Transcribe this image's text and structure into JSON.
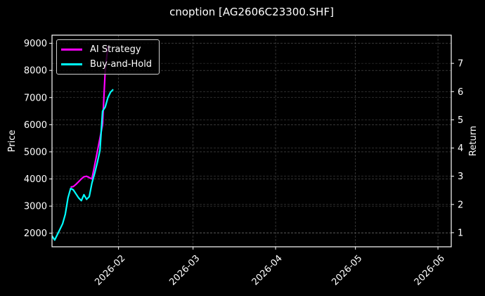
{
  "chart_data": {
    "type": "line",
    "title": "cnoption [AG2606C23300.SHF]",
    "xlabel": "",
    "ylabel": "Price",
    "ylabel_right": "Return",
    "x_ticks": [
      "2026-02",
      "2026-03",
      "2026-04",
      "2026-05",
      "2026-06"
    ],
    "y_ticks": [
      2000,
      3000,
      4000,
      5000,
      6000,
      7000,
      8000,
      9000
    ],
    "y_right_ticks": [
      1,
      2,
      3,
      4,
      5,
      6,
      7
    ],
    "ylim": [
      1500,
      9300
    ],
    "ylim_right": [
      0.5,
      8.0
    ],
    "xlim": [
      "2026-01-07",
      "2026-06-06"
    ],
    "grid": true,
    "legend_position": "upper left",
    "series": [
      {
        "name": "AI Strategy",
        "color": "#ff00ff",
        "axis": "price",
        "x": [
          "2026-01-14",
          "2026-01-15",
          "2026-01-16",
          "2026-01-17",
          "2026-01-18",
          "2026-01-19",
          "2026-01-20",
          "2026-01-21",
          "2026-01-22",
          "2026-01-23",
          "2026-01-24",
          "2026-01-25",
          "2026-01-26",
          "2026-01-27",
          "2026-01-28"
        ],
        "values": [
          3700,
          3720,
          3800,
          3900,
          4000,
          4080,
          4100,
          4050,
          4000,
          4500,
          5000,
          5500,
          6000,
          8000,
          8900
        ]
      },
      {
        "name": "Buy-and-Hold",
        "color": "#00ffff",
        "axis": "price",
        "x": [
          "2026-01-07",
          "2026-01-08",
          "2026-01-09",
          "2026-01-10",
          "2026-01-11",
          "2026-01-12",
          "2026-01-13",
          "2026-01-14",
          "2026-01-15",
          "2026-01-16",
          "2026-01-17",
          "2026-01-18",
          "2026-01-19",
          "2026-01-20",
          "2026-01-21",
          "2026-01-22",
          "2026-01-23",
          "2026-01-24",
          "2026-01-25",
          "2026-01-26",
          "2026-01-27",
          "2026-01-28",
          "2026-01-29",
          "2026-01-30"
        ],
        "values": [
          1900,
          1750,
          1950,
          2150,
          2350,
          2700,
          3300,
          3650,
          3600,
          3450,
          3300,
          3200,
          3420,
          3250,
          3350,
          3850,
          4200,
          4600,
          5050,
          6500,
          6650,
          7000,
          7200,
          7300
        ]
      }
    ]
  },
  "legend": {
    "items": [
      {
        "label": "AI Strategy",
        "color": "#ff00ff"
      },
      {
        "label": "Buy-and-Hold",
        "color": "#00ffff"
      }
    ]
  }
}
